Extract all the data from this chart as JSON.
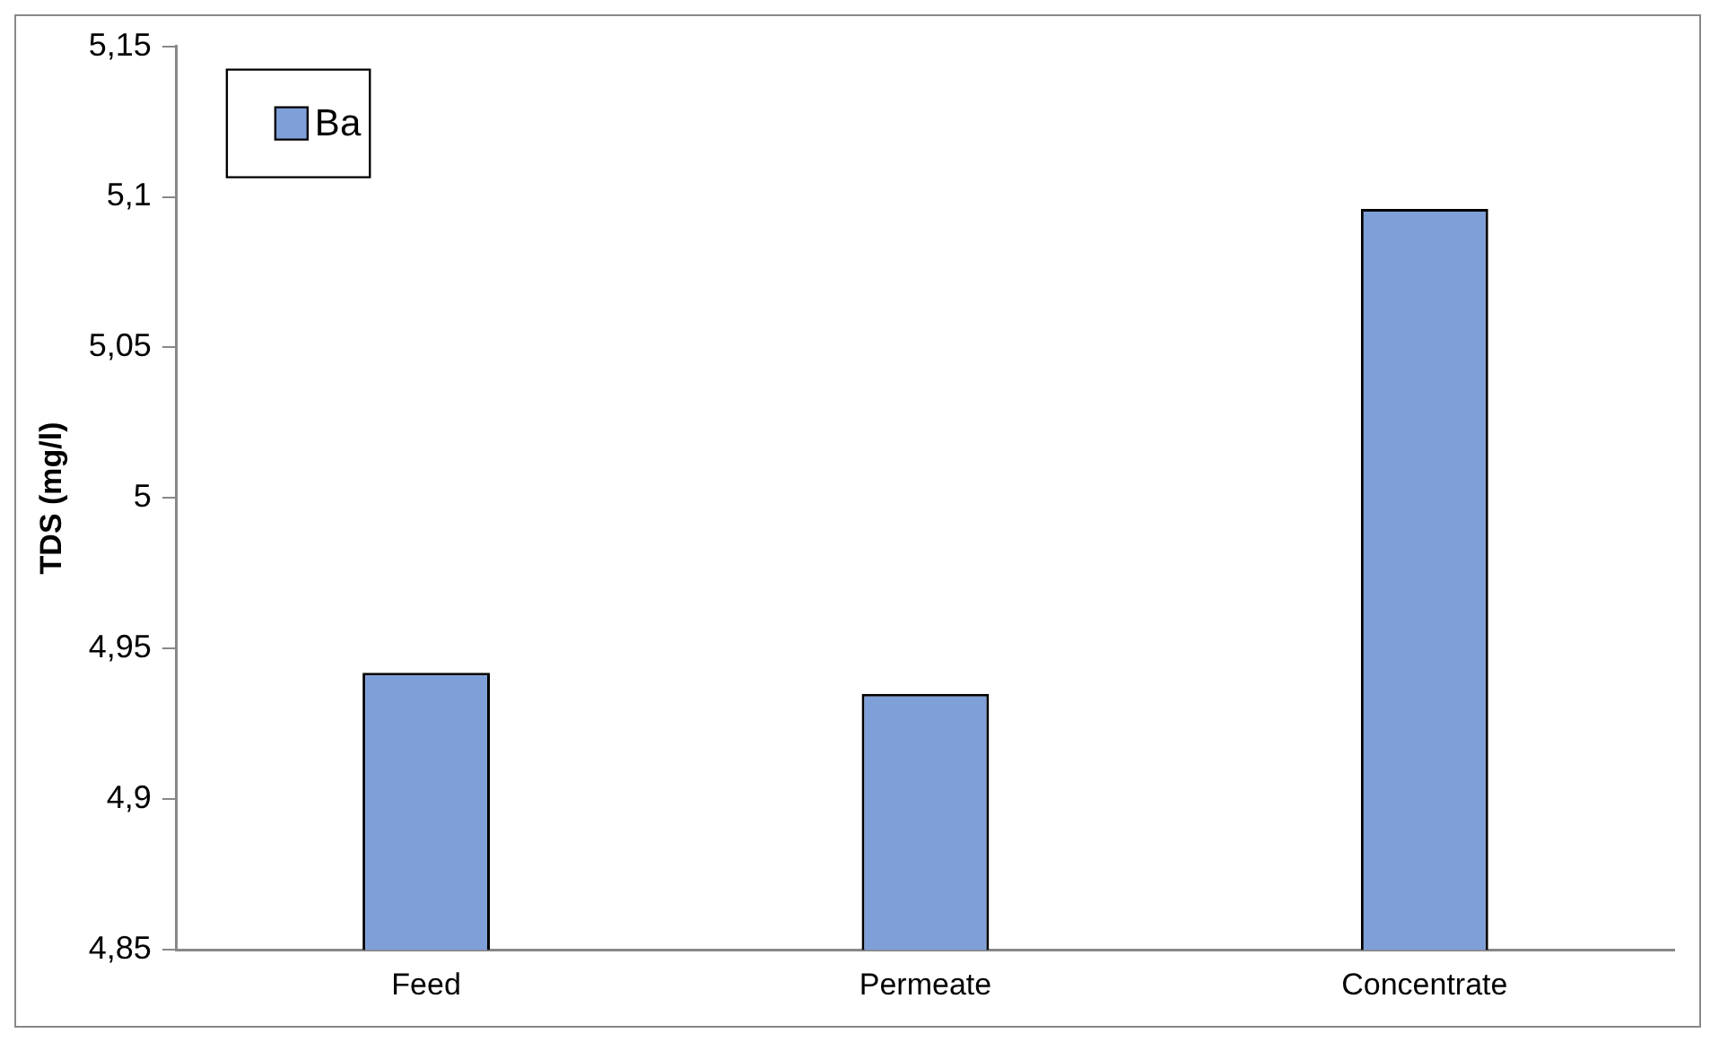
{
  "chart_data": {
    "type": "bar",
    "ylabel": "TDS (mg/l)",
    "categories": [
      "Feed",
      "Permeate",
      "Concentrate"
    ],
    "series": [
      {
        "name": "Ba",
        "color": "#7f9fd8",
        "values": [
          4.942,
          4.935,
          5.096
        ]
      }
    ],
    "ylim": [
      4.85,
      5.15
    ],
    "yticks": [
      {
        "value": 4.85,
        "label": "4,85"
      },
      {
        "value": 4.9,
        "label": "4,9"
      },
      {
        "value": 4.95,
        "label": "4,95"
      },
      {
        "value": 5,
        "label": "5"
      },
      {
        "value": 5.05,
        "label": "5,05"
      },
      {
        "value": 5.1,
        "label": "5,1"
      },
      {
        "value": 5.15,
        "label": "5,15"
      }
    ],
    "grid": false,
    "legend": "top left"
  }
}
